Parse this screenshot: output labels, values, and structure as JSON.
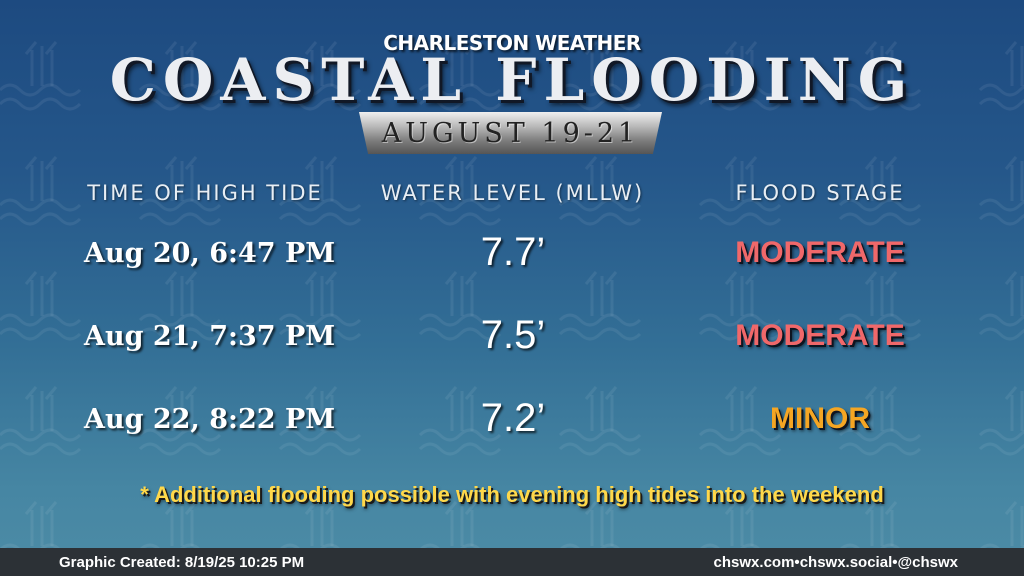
{
  "header": {
    "brand": "CHARLESTON WEATHER",
    "title": "COASTAL FLOODING",
    "date_range": "AUGUST 19-21"
  },
  "columns": {
    "time": "TIME OF HIGH TIDE",
    "level": "WATER LEVEL (MLLW)",
    "stage": "FLOOD STAGE"
  },
  "rows": [
    {
      "time": "Aug 20, 6:47 PM",
      "level": "7.7’",
      "stage": "MODERATE",
      "stage_color": "#f0686a"
    },
    {
      "time": "Aug 21, 7:37 PM",
      "level": "7.5’",
      "stage": "MODERATE",
      "stage_color": "#f0686a"
    },
    {
      "time": "Aug 22, 8:22 PM",
      "level": "7.2’",
      "stage": "MINOR",
      "stage_color": "#f5a623"
    }
  ],
  "note": "* Additional flooding possible with evening high tides into the weekend",
  "footer": {
    "created_label": "Graphic Created:",
    "created_value": "8/19/25 10:25 PM",
    "links": [
      "chswx.com",
      "chswx.social",
      "@chswx"
    ],
    "separator": "•"
  },
  "colors": {
    "moderate": "#f0686a",
    "minor": "#f5a623",
    "note": "#ffd84a"
  }
}
